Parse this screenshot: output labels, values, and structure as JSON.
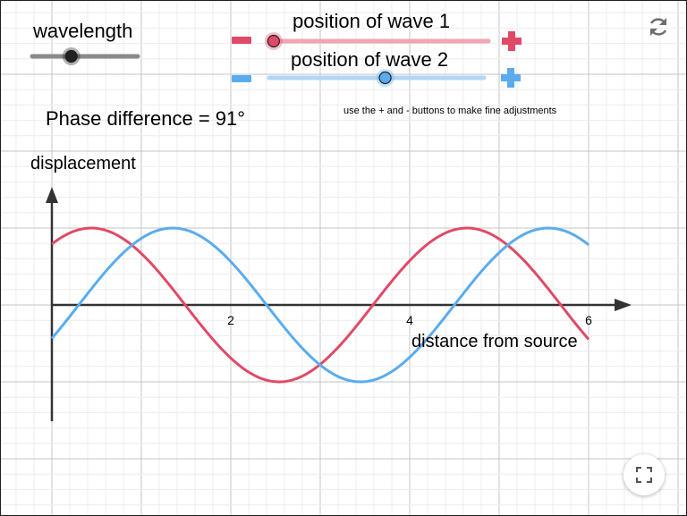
{
  "labels": {
    "wavelength": "wavelength",
    "phase_prefix": "Phase difference = ",
    "hint": "use the + and - buttons to make fine adjustments",
    "y_axis": "displacement",
    "x_axis": "distance from source"
  },
  "wave1": {
    "title": "position of wave 1",
    "minus": "−",
    "plus": "+",
    "color": "#e04a67",
    "slider_fraction": 0.02
  },
  "wave2": {
    "title": "position of wave 2",
    "minus": "−",
    "plus": "+",
    "color": "#5aacee",
    "slider_fraction": 0.54
  },
  "wavelength_slider": {
    "fraction": 0.37
  },
  "phase_difference_deg": "91°",
  "icons": {
    "reset": "reset-icon",
    "fullscreen": "fullscreen-icon"
  },
  "chart_data": {
    "type": "line",
    "xlabel": "distance from source",
    "ylabel": "displacement",
    "xlim": [
      0,
      6
    ],
    "x_ticks": [
      "2",
      "4",
      "6"
    ],
    "wavelength": 4.2,
    "series": [
      {
        "name": "position of wave 1",
        "color": "#e04a67",
        "amplitude": 1,
        "crest_x": [
          0.44,
          4.63
        ],
        "trough_x": [
          2.42
        ]
      },
      {
        "name": "position of wave 2",
        "color": "#5aacee",
        "amplitude": 1,
        "crest_x": [
          1.35,
          5.7
        ],
        "trough_x": [
          3.5
        ]
      }
    ]
  }
}
